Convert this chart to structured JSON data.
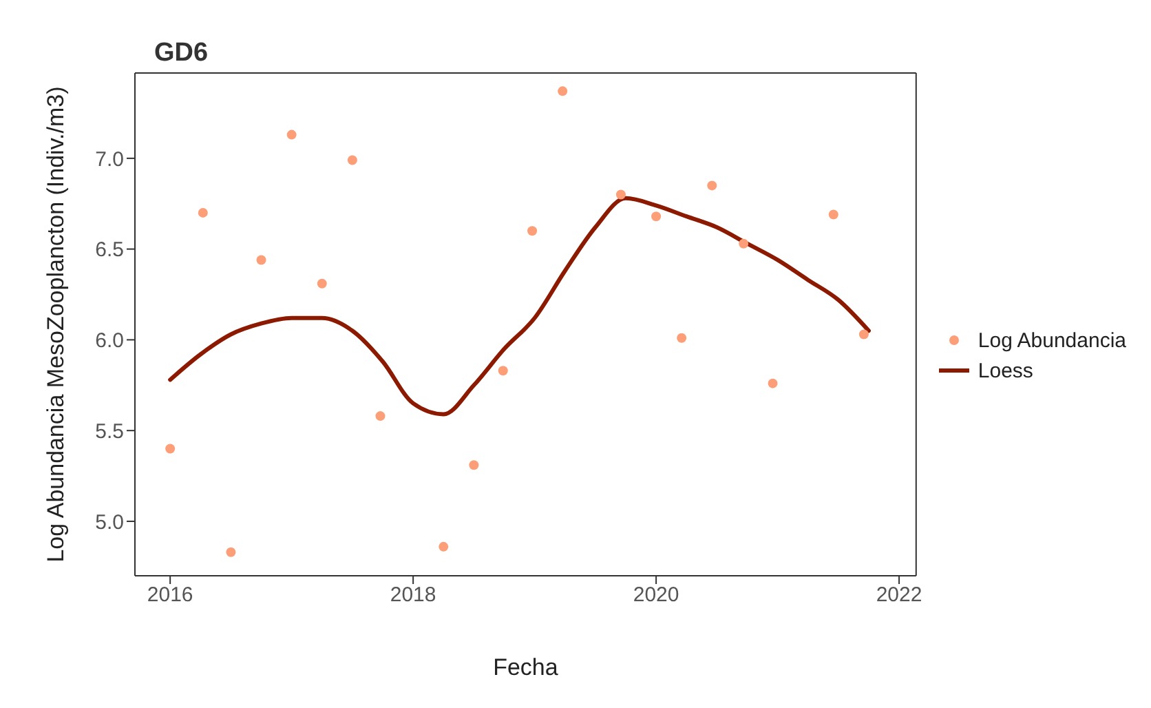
{
  "chart_data": {
    "type": "scatter",
    "title": "GD6",
    "xlabel": "Fecha",
    "ylabel": "Log Abundancia MesoZooplancton  (Indiv./m3)",
    "xlim": [
      2015.71,
      2022.14
    ],
    "xticks": [
      2016,
      2018,
      2020,
      2022
    ],
    "ylim": [
      4.7,
      7.47
    ],
    "yticks": [
      {
        "value": 5,
        "label": "5.0"
      },
      5.5,
      {
        "value": 6,
        "label": "6.0"
      },
      6.5,
      {
        "value": 7,
        "label": "7.0"
      }
    ],
    "grid": false,
    "legend": "right",
    "series": [
      {
        "name": "Log Abundancia",
        "marker": "circle",
        "color": "#fc9f78",
        "x": [
          2016.0,
          2016.27,
          2016.5,
          2016.75,
          2017.0,
          2017.25,
          2017.5,
          2017.73,
          2018.25,
          2018.5,
          2018.74,
          2018.98,
          2019.23,
          2019.71,
          2020.0,
          2020.21,
          2020.46,
          2020.72,
          2020.96,
          2021.46,
          2021.71
        ],
        "values": [
          5.4,
          6.7,
          4.83,
          6.44,
          7.13,
          6.31,
          6.99,
          5.58,
          4.86,
          5.31,
          5.83,
          6.6,
          7.37,
          6.8,
          6.68,
          6.01,
          6.85,
          6.53,
          5.76,
          6.69,
          6.03
        ]
      },
      {
        "name": "Loess",
        "type": "line",
        "marker": "none",
        "line_style": "solid",
        "color": "#8b1a00",
        "x": [
          2016.0,
          2016.25,
          2016.5,
          2016.75,
          2017.0,
          2017.25,
          2017.5,
          2017.75,
          2018.0,
          2018.25,
          2018.5,
          2018.75,
          2019.0,
          2019.25,
          2019.5,
          2019.75,
          2020.0,
          2020.25,
          2020.5,
          2020.75,
          2021.0,
          2021.25,
          2021.5,
          2021.75
        ],
        "values": [
          5.78,
          5.92,
          6.03,
          6.09,
          6.12,
          6.12,
          6.05,
          5.88,
          5.65,
          5.59,
          5.75,
          5.95,
          6.12,
          6.38,
          6.62,
          6.78,
          6.74,
          6.68,
          6.62,
          6.53,
          6.44,
          6.33,
          6.22,
          6.05
        ]
      }
    ]
  }
}
